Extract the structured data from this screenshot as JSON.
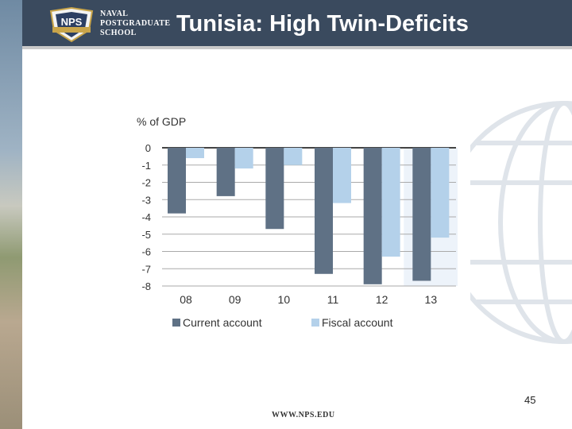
{
  "header": {
    "school_lines": [
      "NAVAL",
      "POSTGRADUATE",
      "SCHOOL"
    ],
    "logo_text": "NPS",
    "title": "Tunisia: High Twin-Deficits"
  },
  "colors": {
    "header_bg": "#3a4a5e",
    "current_account": "#5f7185",
    "fiscal_account": "#b4d1ea",
    "forecast_shade": "#edf3fa"
  },
  "chart_data": {
    "type": "bar",
    "title": "",
    "ylabel": "% of GDP",
    "xlabel": "",
    "categories": [
      "08",
      "09",
      "10",
      "11",
      "12",
      "13"
    ],
    "series": [
      {
        "name": "Current account",
        "values": [
          -3.8,
          -2.8,
          -4.7,
          -7.3,
          -7.9,
          -7.7
        ]
      },
      {
        "name": "Fiscal account",
        "values": [
          -0.6,
          -1.2,
          -1.0,
          -3.2,
          -6.3,
          -5.2
        ]
      }
    ],
    "ylim": [
      -8,
      0
    ],
    "yticks": [
      0,
      -1,
      -2,
      -3,
      -4,
      -5,
      -6,
      -7,
      -8
    ],
    "grid": true,
    "legend": "bottom",
    "shaded_category": "13"
  },
  "footer": {
    "page_number": "45",
    "url": "WWW.NPS.EDU"
  }
}
